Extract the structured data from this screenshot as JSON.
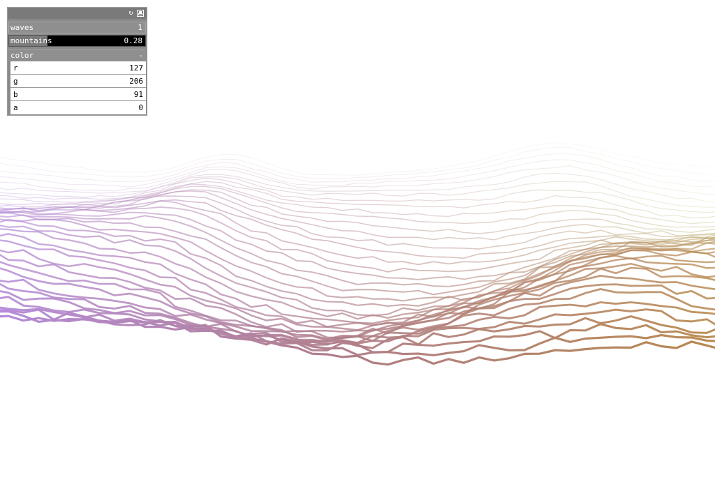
{
  "gui": {
    "header": {
      "refresh_icon": "refresh-icon",
      "save_icon": "save-icon"
    },
    "waves": {
      "label": "waves",
      "value": "1"
    },
    "mountains": {
      "label": "mountains",
      "value": "0.28",
      "fraction": 0.28
    },
    "color": {
      "title": "color",
      "toggle": "-",
      "params": [
        {
          "label": "r",
          "value": "127"
        },
        {
          "label": "g",
          "value": "206"
        },
        {
          "label": "b",
          "value": "91"
        },
        {
          "label": "a",
          "value": "0"
        }
      ]
    }
  },
  "scene": {
    "left_color": "#b48ad8",
    "middle_color": "#b07e86",
    "right_color": "#b8894e",
    "back_right_color": "#c9e6a8",
    "background": "#ffffff"
  }
}
